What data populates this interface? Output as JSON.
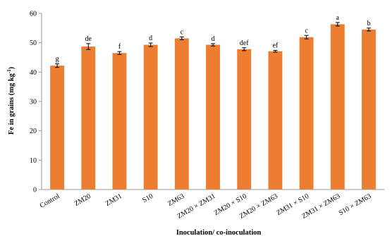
{
  "chart_data": {
    "type": "bar",
    "xlabel": "Inoculation/ co-inoculation",
    "ylabel_main": "Fe in grains (mg kg",
    "ylabel_sup": "-1",
    "ylabel_end": ")",
    "ylim": [
      0,
      60
    ],
    "yticks": [
      0,
      10,
      20,
      30,
      40,
      50,
      60
    ],
    "categories": [
      "Control",
      "ZM20",
      "ZM31",
      "S10",
      "ZM63",
      "ZM20 × ZM31",
      "ZM20 × S10",
      "ZM20 × ZM63",
      "ZM31 × S10",
      "ZM31 × ZM63",
      "S10 × ZM63"
    ],
    "values": [
      42.2,
      48.7,
      46.5,
      49.3,
      51.5,
      49.3,
      47.8,
      47.1,
      51.9,
      56.3,
      54.5
    ],
    "errors": [
      0.6,
      1.0,
      0.5,
      0.6,
      0.5,
      0.4,
      0.5,
      0.3,
      0.6,
      0.6,
      0.5
    ],
    "labels": [
      "g",
      "de",
      "f",
      "d",
      "c",
      "d",
      "def",
      "ef",
      "c",
      "a",
      "b"
    ],
    "bar_color": "#ED7D31",
    "grid": false
  }
}
